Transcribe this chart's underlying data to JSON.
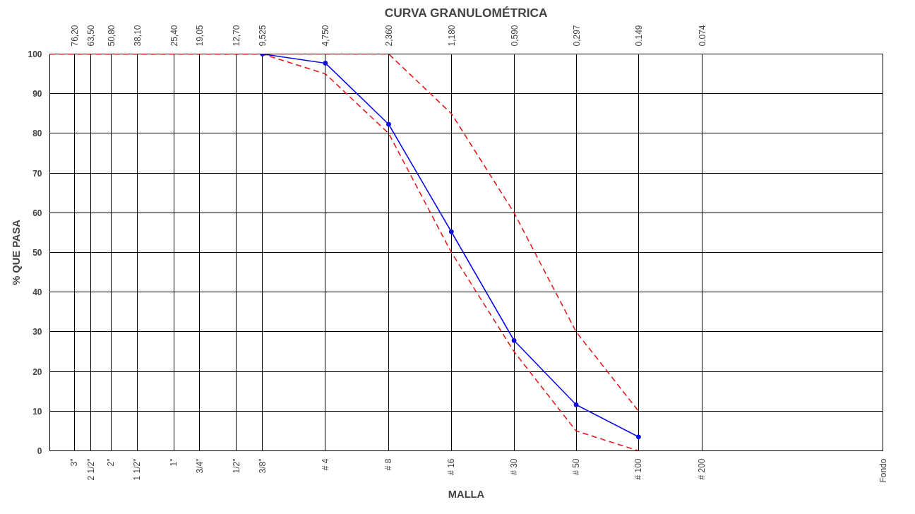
{
  "chart_data": {
    "type": "line",
    "title": "CURVA GRANULOMÉTRICA",
    "xlabel": "MALLA",
    "ylabel": "% QUE PASA",
    "log": "x",
    "xlim": [
      100,
      0.01
    ],
    "ylim": [
      0,
      100
    ],
    "yticks": [
      0,
      10,
      20,
      30,
      40,
      50,
      60,
      70,
      80,
      90,
      100
    ],
    "xticks": [
      {
        "value": 76.2,
        "label": "76,20"
      },
      {
        "value": 63.5,
        "label": "63,50"
      },
      {
        "value": 50.8,
        "label": "50,80"
      },
      {
        "value": 38.1,
        "label": "38,10"
      },
      {
        "value": 25.4,
        "label": "25,40"
      },
      {
        "value": 19.05,
        "label": "19,05"
      },
      {
        "value": 12.7,
        "label": "12,70"
      },
      {
        "value": 9.525,
        "label": "9,525"
      },
      {
        "value": 4.75,
        "label": "4,750"
      },
      {
        "value": 2.36,
        "label": "2,360"
      },
      {
        "value": 1.18,
        "label": "1,180"
      },
      {
        "value": 0.59,
        "label": "0,590"
      },
      {
        "value": 0.297,
        "label": "0,297"
      },
      {
        "value": 0.149,
        "label": "0.149"
      },
      {
        "value": 0.074,
        "label": "0.074"
      }
    ],
    "annotations": [
      "3\"",
      "2 1/2\"",
      "2\"",
      "1 1/2\"",
      "1\"",
      "3/4\"",
      "1/2\"",
      "3/8\"",
      "# 4",
      "# 8",
      "# 16",
      "# 30",
      "# 50",
      "# 100",
      "# 200",
      "Fondo"
    ],
    "grid": true,
    "series": [
      {
        "color": "#e02020",
        "line_style": "dashed",
        "marker": "none",
        "x": [
          100,
          9.525,
          4.75,
          2.36,
          1.18,
          0.59,
          0.297,
          0.149
        ],
        "values": [
          100,
          100,
          95,
          80,
          50,
          25,
          5,
          0
        ]
      },
      {
        "color": "#e02020",
        "line_style": "dashed",
        "marker": "none",
        "x": [
          100,
          2.36,
          1.18,
          0.59,
          0.297,
          0.149
        ],
        "values": [
          100,
          100,
          85,
          60,
          30,
          10
        ]
      },
      {
        "color": "#1010e0",
        "line_style": "solid",
        "marker": "circle",
        "x": [
          9.525,
          4.75,
          2.36,
          1.18,
          0.59,
          0.297,
          0.149
        ],
        "values": [
          100,
          97.7,
          82.3,
          55.2,
          27.8,
          11.6,
          3.5
        ]
      }
    ]
  }
}
